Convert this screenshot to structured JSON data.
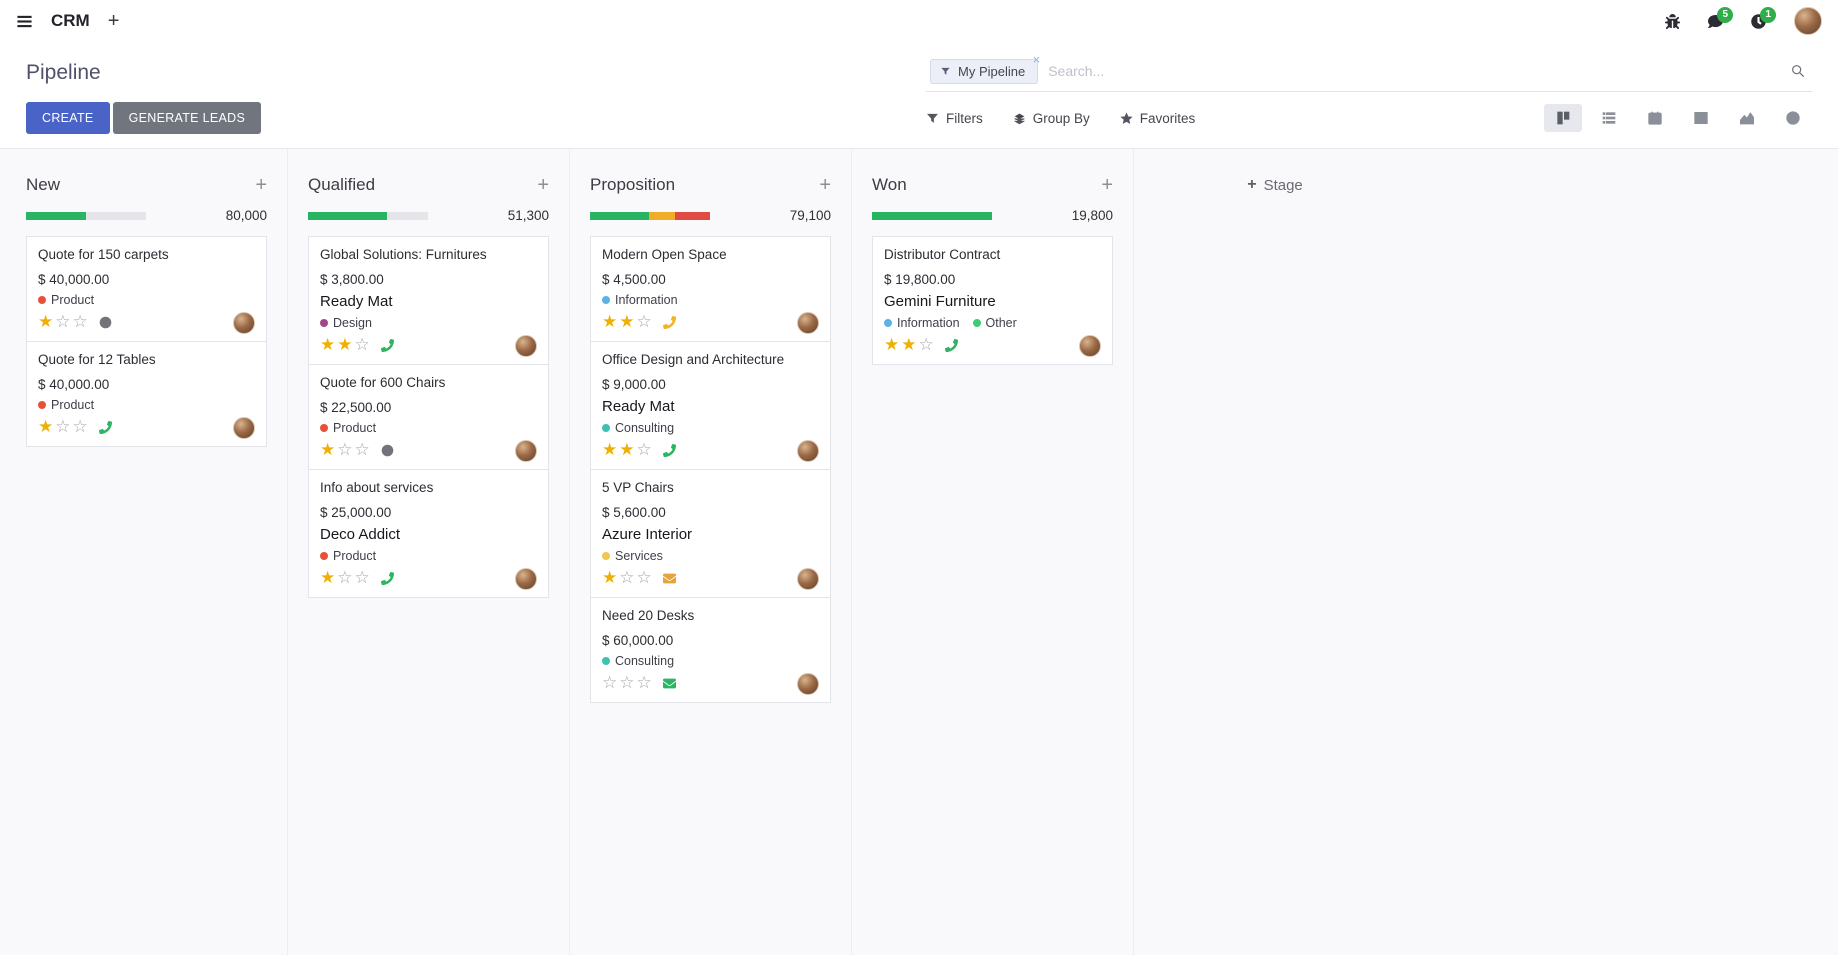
{
  "navbar": {
    "app_name": "CRM",
    "messages_badge": "5",
    "activities_badge": "1"
  },
  "control_panel": {
    "page_title": "Pipeline",
    "search": {
      "facet_label": "My Pipeline",
      "placeholder": "Search..."
    },
    "create_label": "CREATE",
    "generate_leads_label": "GENERATE LEADS",
    "filters_label": "Filters",
    "group_by_label": "Group By",
    "favorites_label": "Favorites"
  },
  "kanban": {
    "add_stage_label": "Stage",
    "columns": [
      {
        "name": "New",
        "total": "80,000",
        "progress": [
          {
            "color": "#28b463",
            "pct": 50
          }
        ],
        "cards": [
          {
            "title": "Quote for 150 carpets",
            "amount": "$ 40,000.00",
            "partner": "",
            "tags": [
              {
                "label": "Product",
                "color": "#e8503c"
              }
            ],
            "stars": 1,
            "activity": {
              "icon": "clock",
              "color": "#73737c"
            }
          },
          {
            "title": "Quote for 12 Tables",
            "amount": "$ 40,000.00",
            "partner": "",
            "tags": [
              {
                "label": "Product",
                "color": "#e8503c"
              }
            ],
            "stars": 1,
            "activity": {
              "icon": "phone",
              "color": "#2db563"
            }
          }
        ]
      },
      {
        "name": "Qualified",
        "total": "51,300",
        "progress": [
          {
            "color": "#28b463",
            "pct": 66
          }
        ],
        "cards": [
          {
            "title": "Global Solutions: Furnitures",
            "amount": "$ 3,800.00",
            "partner": "Ready Mat",
            "tags": [
              {
                "label": "Design",
                "color": "#a24689"
              }
            ],
            "stars": 2,
            "activity": {
              "icon": "phone",
              "color": "#2db563"
            }
          },
          {
            "title": "Quote for 600 Chairs",
            "amount": "$ 22,500.00",
            "partner": "",
            "tags": [
              {
                "label": "Product",
                "color": "#e8503c"
              }
            ],
            "stars": 1,
            "activity": {
              "icon": "clock",
              "color": "#73737c"
            }
          },
          {
            "title": "Info about services",
            "amount": "$ 25,000.00",
            "partner": "Deco Addict",
            "tags": [
              {
                "label": "Product",
                "color": "#e8503c"
              }
            ],
            "stars": 1,
            "activity": {
              "icon": "phone",
              "color": "#2db563"
            }
          }
        ]
      },
      {
        "name": "Proposition",
        "total": "79,100",
        "progress": [
          {
            "color": "#28b463",
            "pct": 49
          },
          {
            "color": "#f0ad27",
            "pct": 22
          },
          {
            "color": "#df4b43",
            "pct": 29
          }
        ],
        "cards": [
          {
            "title": "Modern Open Space",
            "amount": "$ 4,500.00",
            "partner": "",
            "tags": [
              {
                "label": "Information",
                "color": "#5bb3e4"
              }
            ],
            "stars": 2,
            "activity": {
              "icon": "phone",
              "color": "#f0b32c"
            }
          },
          {
            "title": "Office Design and Architecture",
            "amount": "$ 9,000.00",
            "partner": "Ready Mat",
            "tags": [
              {
                "label": "Consulting",
                "color": "#3fc0b1"
              }
            ],
            "stars": 2,
            "activity": {
              "icon": "phone",
              "color": "#2db563"
            }
          },
          {
            "title": "5 VP Chairs",
            "amount": "$ 5,600.00",
            "partner": "Azure Interior",
            "tags": [
              {
                "label": "Services",
                "color": "#efc64f"
              }
            ],
            "stars": 1,
            "activity": {
              "icon": "envelope",
              "color": "#e8a33d"
            }
          },
          {
            "title": "Need 20 Desks",
            "amount": "$ 60,000.00",
            "partner": "",
            "tags": [
              {
                "label": "Consulting",
                "color": "#3fc0b1"
              }
            ],
            "stars": 0,
            "activity": {
              "icon": "envelope",
              "color": "#2db563"
            }
          }
        ]
      },
      {
        "name": "Won",
        "total": "19,800",
        "progress": [
          {
            "color": "#28b463",
            "pct": 100
          }
        ],
        "cards": [
          {
            "title": "Distributor Contract",
            "amount": "$ 19,800.00",
            "partner": "Gemini Furniture",
            "tags": [
              {
                "label": "Information",
                "color": "#5bb3e4"
              },
              {
                "label": "Other",
                "color": "#3fca74"
              }
            ],
            "stars": 2,
            "activity": {
              "icon": "phone",
              "color": "#2db563"
            }
          }
        ]
      }
    ]
  }
}
